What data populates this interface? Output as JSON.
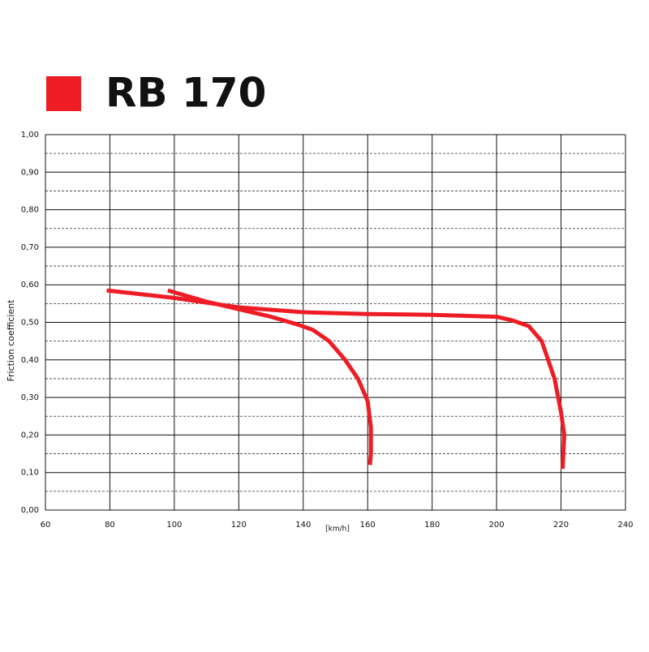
{
  "chart_data": {
    "type": "line",
    "title": "RB 170",
    "color": "#ee1c25",
    "x_label": "[km/h]",
    "y_label": "Friction coefficient",
    "series": [
      {
        "x": [
          98,
          110,
          120,
          130,
          138,
          143,
          148,
          153,
          157,
          160,
          161,
          161,
          160.7
        ],
        "values": [
          0.585,
          0.555,
          0.535,
          0.515,
          0.495,
          0.48,
          0.45,
          0.4,
          0.35,
          0.29,
          0.22,
          0.15,
          0.12
        ]
      },
      {
        "x": [
          79,
          100,
          120,
          140,
          160,
          180,
          200,
          205,
          210,
          214,
          218,
          220,
          221,
          220.5
        ],
        "values": [
          0.585,
          0.565,
          0.54,
          0.527,
          0.522,
          0.52,
          0.515,
          0.505,
          0.49,
          0.45,
          0.35,
          0.26,
          0.2,
          0.11
        ]
      }
    ],
    "xlim": [
      60,
      240
    ],
    "xticks": [
      60,
      80,
      100,
      120,
      140,
      160,
      180,
      200,
      220,
      240
    ],
    "ylim": [
      0,
      1
    ],
    "yticks": [
      {
        "value": 0,
        "label": "0,00"
      },
      {
        "value": 0.1,
        "label": "0,10"
      },
      {
        "value": 0.2,
        "label": "0,20"
      },
      {
        "value": 0.3,
        "label": "0,30"
      },
      {
        "value": 0.4,
        "label": "0,40"
      },
      {
        "value": 0.5,
        "label": "0,50"
      },
      {
        "value": 0.6,
        "label": "0,60"
      },
      {
        "value": 0.7,
        "label": "0,70"
      },
      {
        "value": 0.8,
        "label": "0,80"
      },
      {
        "value": 0.9,
        "label": "0,90"
      },
      {
        "value": 1,
        "label": "1,00"
      }
    ],
    "minor_yticks": [
      0.05,
      0.15,
      0.25,
      0.35,
      0.45,
      0.55,
      0.65,
      0.75,
      0.85,
      0.95
    ],
    "grid": true
  }
}
